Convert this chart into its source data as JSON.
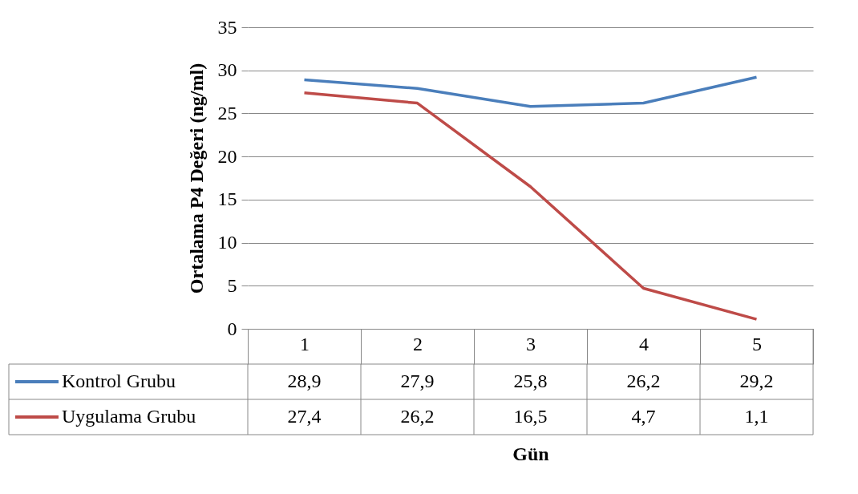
{
  "chart_data": {
    "type": "line",
    "ylabel": "Ortalama P4 Değeri (ng/ml)",
    "xlabel": "Gün",
    "categories": [
      "1",
      "2",
      "3",
      "4",
      "5"
    ],
    "ylim": [
      0,
      35
    ],
    "yticks": [
      0,
      5,
      10,
      15,
      20,
      25,
      30,
      35
    ],
    "grid": "y",
    "legend": "bottom",
    "series": [
      {
        "name": "Kontrol Grubu",
        "color": "#4a7ebb",
        "values": [
          28.9,
          27.9,
          25.8,
          26.2,
          29.2
        ],
        "value_labels": [
          "28,9",
          "27,9",
          "25,8",
          "26,2",
          "29,2"
        ]
      },
      {
        "name": "Uygulama Grubu",
        "color": "#be4b48",
        "values": [
          27.4,
          26.2,
          16.5,
          4.7,
          1.1
        ],
        "value_labels": [
          "27,4",
          "26,2",
          "16,5",
          "4,7",
          "1,1"
        ]
      }
    ]
  }
}
